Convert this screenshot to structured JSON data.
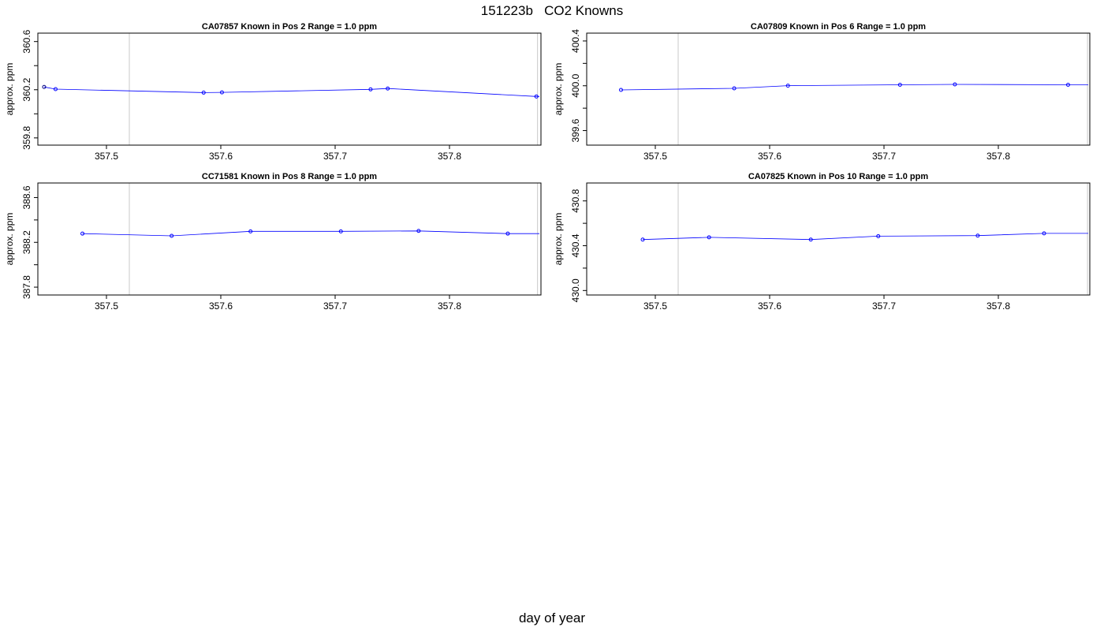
{
  "figure": {
    "title": "151223b   CO2 Knowns",
    "xlabel": "day of year"
  },
  "colors": {
    "series": "#0000ff",
    "first_point": "#000080",
    "vline": "#c8c8c8",
    "frame": "#000000"
  },
  "chart_data": [
    {
      "type": "line",
      "title": "CA07857    Known in Pos 2          Range = 1.0 ppm",
      "ylabel": "approx. ppm",
      "xlim": [
        357.44,
        357.88
      ],
      "ylim": [
        359.74,
        360.67
      ],
      "xticks": [
        357.5,
        357.6,
        357.7,
        357.8
      ],
      "xtick_labels": [
        "357.5",
        "357.6",
        "357.7",
        "357.8"
      ],
      "yticks": [
        359.8,
        360.2,
        360.6
      ],
      "ytick_labels": [
        "359.8",
        "360.2",
        "360.6"
      ],
      "vlines": [
        357.52,
        357.877
      ],
      "x": [
        357.4455,
        357.4555,
        357.585,
        357.601,
        357.731,
        357.746,
        357.876
      ],
      "y": [
        360.223,
        360.205,
        360.176,
        360.178,
        360.203,
        360.21,
        360.144
      ]
    },
    {
      "type": "line",
      "title": "CA07809    Known in Pos 6          Range = 1.0 ppm",
      "ylabel": "approx. ppm",
      "xlim": [
        357.44,
        357.88
      ],
      "ylim": [
        399.47,
        400.47
      ],
      "xticks": [
        357.5,
        357.6,
        357.7,
        357.8
      ],
      "xtick_labels": [
        "357.5",
        "357.6",
        "357.7",
        "357.8"
      ],
      "yticks": [
        399.6,
        400.0,
        400.4
      ],
      "ytick_labels": [
        "399.6",
        "400.0",
        "400.4"
      ],
      "vlines": [
        357.52,
        357.878
      ],
      "x": [
        357.47,
        357.569,
        357.616,
        357.714,
        357.762,
        357.861
      ],
      "y": [
        399.963,
        399.977,
        400.001,
        400.009,
        400.012,
        400.009
      ]
    },
    {
      "type": "line",
      "title": "CC71581    Known in Pos 8          Range = 1.0 ppm",
      "ylabel": "approx. ppm",
      "xlim": [
        357.44,
        357.88
      ],
      "ylim": [
        387.73,
        388.73
      ],
      "xticks": [
        357.5,
        357.6,
        357.7,
        357.8
      ],
      "xtick_labels": [
        "357.5",
        "357.6",
        "357.7",
        "357.8"
      ],
      "yticks": [
        387.8,
        388.2,
        388.6
      ],
      "ytick_labels": [
        "387.8",
        "388.2",
        "388.6"
      ],
      "vlines": [
        357.52,
        357.877
      ],
      "x": [
        357.479,
        357.557,
        357.626,
        357.705,
        357.773,
        357.851
      ],
      "y": [
        388.278,
        388.258,
        388.298,
        388.298,
        388.302,
        388.278
      ]
    },
    {
      "type": "line",
      "title": "CA07825    Known in Pos 10          Range = 1.0 ppm",
      "ylabel": "approx. ppm",
      "xlim": [
        357.44,
        357.88
      ],
      "ylim": [
        429.96,
        430.96
      ],
      "xticks": [
        357.5,
        357.6,
        357.7,
        357.8
      ],
      "xtick_labels": [
        "357.5",
        "357.6",
        "357.7",
        "357.8"
      ],
      "yticks": [
        430.0,
        430.4,
        430.8
      ],
      "ytick_labels": [
        "430.0",
        "430.4",
        "430.8"
      ],
      "vlines": [
        357.52,
        357.878
      ],
      "x": [
        357.489,
        357.547,
        357.636,
        357.695,
        357.782,
        357.84
      ],
      "y": [
        430.455,
        430.475,
        430.455,
        430.485,
        430.49,
        430.51
      ]
    }
  ]
}
